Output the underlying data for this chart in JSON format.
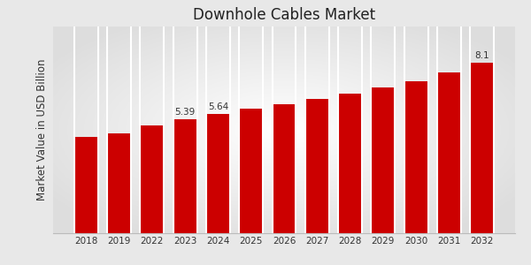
{
  "title": "Downhole Cables Market",
  "ylabel": "Market Value in USD Billion",
  "categories": [
    "2018",
    "2019",
    "2022",
    "2023",
    "2024",
    "2025",
    "2026",
    "2027",
    "2028",
    "2029",
    "2030",
    "2031",
    "2032"
  ],
  "values": [
    4.55,
    4.72,
    5.1,
    5.39,
    5.64,
    5.9,
    6.1,
    6.35,
    6.62,
    6.92,
    7.22,
    7.62,
    8.1
  ],
  "bar_color": "#cc0000",
  "title_fontsize": 12,
  "label_fontsize": 7.5,
  "ylabel_fontsize": 8.5,
  "annotations": {
    "2023": "5.39",
    "2024": "5.64",
    "2032": "8.1"
  },
  "ylim": [
    0,
    9.8
  ],
  "bottom_bar_color": "#cc0000",
  "bg_color_center": "#ffffff",
  "bg_color_edge": "#d8d8d8"
}
